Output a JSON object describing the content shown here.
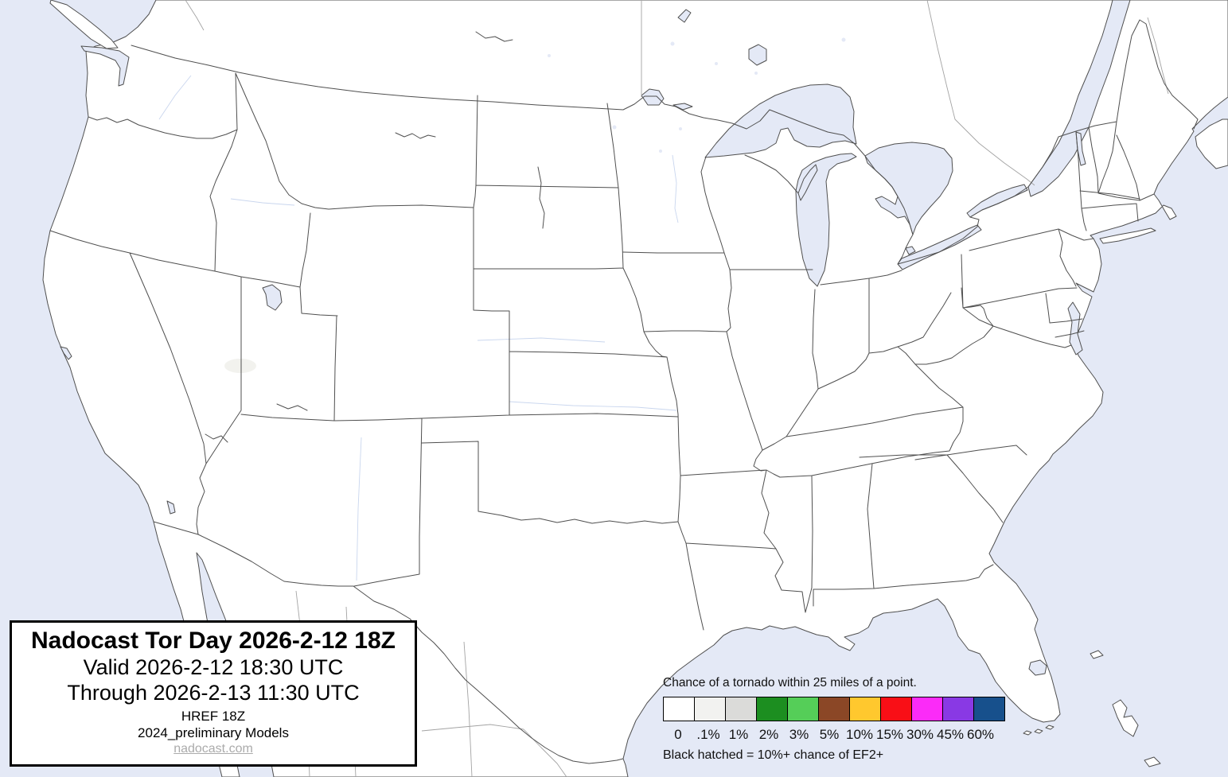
{
  "title_box": {
    "title": "Nadocast Tor Day 2026-2-12 18Z",
    "valid": "Valid 2026-2-12 18:30 UTC",
    "through": "Through 2026-2-13 11:30 UTC",
    "model_run": "HREF 18Z",
    "model_set": "2024_preliminary Models",
    "site_link": "nadocast.com"
  },
  "legend": {
    "title": "Chance of a tornado within 25 miles of a point.",
    "note": "Black hatched = 10%+ chance of EF2+",
    "bins": [
      {
        "label": "0",
        "color": "#FFFFFF"
      },
      {
        "label": ".1%",
        "color": "#F2F2F0"
      },
      {
        "label": "1%",
        "color": "#DBDBD9"
      },
      {
        "label": "2%",
        "color": "#1C8E20"
      },
      {
        "label": "3%",
        "color": "#55CE58"
      },
      {
        "label": "5%",
        "color": "#8B4726"
      },
      {
        "label": "10%",
        "color": "#FFC82E"
      },
      {
        "label": "15%",
        "color": "#F90F16"
      },
      {
        "label": "30%",
        "color": "#FB2BF8"
      },
      {
        "label": "45%",
        "color": "#8939E4"
      },
      {
        "label": "60%",
        "color": "#17508C"
      }
    ]
  },
  "colors": {
    "water": "#E4E9F6",
    "land": "#FFFFFF",
    "border": "#4F4F4F",
    "border_light": "#A3A3A3",
    "river": "#C9D6EE"
  }
}
